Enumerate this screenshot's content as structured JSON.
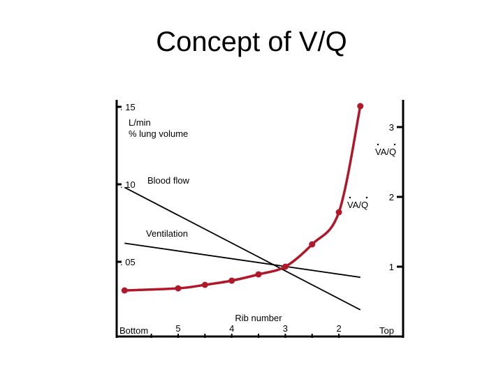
{
  "slide": {
    "title": "Concept of V/Q"
  },
  "chart_data": {
    "type": "line",
    "left_axis": {
      "unit_label": "L/min",
      "unit_label_2": "% lung volume",
      "ticks": [
        {
          "value": 0.15,
          "label": ". 15"
        },
        {
          "value": 0.1,
          "label": ". 10"
        },
        {
          "value": 0.05,
          "label": ". 05"
        }
      ]
    },
    "right_axis": {
      "label": "VA/Q",
      "ticks": [
        {
          "value": 3,
          "label": "3"
        },
        {
          "value": 2,
          "label": "2"
        },
        {
          "value": 1,
          "label": "1"
        }
      ]
    },
    "x_axis": {
      "title": "Rib number",
      "end_labels": {
        "left": "Bottom",
        "right": "Top"
      },
      "ticks": [
        {
          "rib": 5,
          "label": "5"
        },
        {
          "rib": 4,
          "label": "4"
        },
        {
          "rib": 3,
          "label": "3"
        },
        {
          "rib": 2,
          "label": "2"
        }
      ]
    },
    "series": [
      {
        "name": "Blood flow",
        "axis": "left",
        "color": "#000000",
        "points": [
          {
            "rib": 6.0,
            "value": 0.098
          },
          {
            "rib": 1.6,
            "value": 0.019
          }
        ]
      },
      {
        "name": "Ventilation",
        "axis": "left",
        "color": "#000000",
        "points": [
          {
            "rib": 6.0,
            "value": 0.062
          },
          {
            "rib": 1.6,
            "value": 0.04
          }
        ]
      },
      {
        "name": "VA/Q",
        "axis": "right",
        "color": "#b0182a",
        "points": [
          {
            "rib": 6.0,
            "value": 0.66
          },
          {
            "rib": 5.0,
            "value": 0.69
          },
          {
            "rib": 4.5,
            "value": 0.74
          },
          {
            "rib": 4.0,
            "value": 0.8
          },
          {
            "rib": 3.5,
            "value": 0.89
          },
          {
            "rib": 3.0,
            "value": 1.0
          },
          {
            "rib": 2.5,
            "value": 1.32
          },
          {
            "rib": 2.0,
            "value": 1.78
          },
          {
            "rib": 1.6,
            "value": 3.3
          }
        ]
      }
    ]
  }
}
